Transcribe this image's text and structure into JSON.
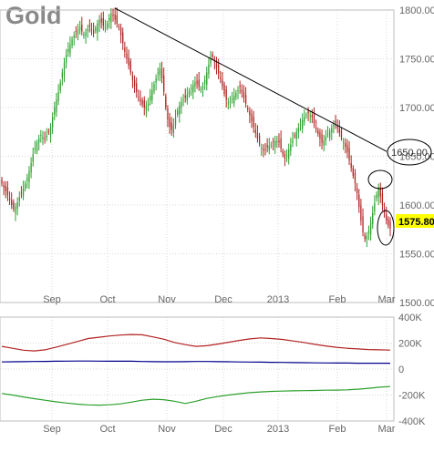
{
  "chart_data": [
    {
      "type": "candlestick",
      "title": "Gold",
      "yticks": [
        1500,
        1550,
        1600,
        1650,
        1700,
        1750,
        1800
      ],
      "ylim": [
        1500,
        1800
      ],
      "xticks": [
        "Sep",
        "Oct",
        "Nov",
        "Dec",
        "2013",
        "Feb",
        "Mar"
      ],
      "last_price": "1575.80",
      "annotation": "1650.00",
      "colors": {
        "up": "#2ca02c",
        "down": "#b22222",
        "trendline": "#000000",
        "last_price_bg": "#ffff00"
      },
      "trendline": [
        {
          "x": "Oct",
          "y": 1802
        },
        {
          "x": "Mar",
          "y": 1655
        }
      ],
      "closes": [
        1622,
        1618,
        1614,
        1610,
        1605,
        1600,
        1596,
        1598,
        1603,
        1608,
        1612,
        1617,
        1622,
        1628,
        1635,
        1643,
        1652,
        1658,
        1664,
        1668,
        1672,
        1670,
        1668,
        1671,
        1675,
        1680,
        1690,
        1700,
        1708,
        1716,
        1726,
        1736,
        1746,
        1754,
        1760,
        1765,
        1770,
        1774,
        1778,
        1780,
        1782,
        1778,
        1775,
        1777,
        1780,
        1783,
        1779,
        1776,
        1781,
        1786,
        1790,
        1787,
        1784,
        1782,
        1786,
        1792,
        1797,
        1794,
        1790,
        1786,
        1782,
        1774,
        1766,
        1757,
        1750,
        1743,
        1736,
        1728,
        1722,
        1716,
        1711,
        1706,
        1703,
        1700,
        1702,
        1704,
        1712,
        1718,
        1724,
        1730,
        1736,
        1740,
        1730,
        1716,
        1700,
        1688,
        1680,
        1677,
        1682,
        1690,
        1697,
        1702,
        1706,
        1708,
        1710,
        1713,
        1717,
        1720,
        1723,
        1726,
        1724,
        1721,
        1719,
        1722,
        1728,
        1736,
        1744,
        1750,
        1752,
        1747,
        1741,
        1735,
        1730,
        1722,
        1714,
        1708,
        1705,
        1706,
        1709,
        1712,
        1715,
        1718,
        1721,
        1716,
        1710,
        1704,
        1698,
        1692,
        1686,
        1680,
        1674,
        1668,
        1663,
        1659,
        1656,
        1657,
        1659,
        1661,
        1662,
        1664,
        1666,
        1665,
        1664,
        1658,
        1652,
        1648,
        1652,
        1657,
        1662,
        1667,
        1671,
        1675,
        1679,
        1683,
        1687,
        1690,
        1692,
        1694,
        1692,
        1690,
        1684,
        1678,
        1673,
        1668,
        1664,
        1666,
        1670,
        1673,
        1676,
        1679,
        1682,
        1684,
        1679,
        1674,
        1669,
        1665,
        1660,
        1654,
        1646,
        1638,
        1630,
        1622,
        1612,
        1598,
        1584,
        1572,
        1565,
        1568,
        1574,
        1582,
        1592,
        1602,
        1611,
        1618,
        1609,
        1600,
        1592,
        1584,
        1579,
        1576
      ]
    },
    {
      "type": "line",
      "yticks": [
        "400K",
        "200K",
        "0",
        "-200K",
        "-400K"
      ],
      "ylim": [
        -400000,
        400000
      ],
      "xticks": [
        "Sep",
        "Oct",
        "Nov",
        "Dec",
        "2013",
        "Feb",
        "Mar"
      ],
      "colors": {
        "red": "#b22222",
        "blue": "#00008b",
        "green": "#2ca02c"
      },
      "series": [
        {
          "values": [
            175000,
            160000,
            145000,
            140000,
            148000,
            168000,
            190000,
            212000,
            235000,
            245000,
            255000,
            262000,
            266000,
            264000,
            248000,
            230000,
            205000,
            188000,
            175000,
            180000,
            192000,
            206000,
            220000,
            232000,
            240000,
            235000,
            228000,
            216000,
            205000,
            190000,
            178000,
            168000,
            160000,
            155000,
            150000,
            148000,
            146000
          ]
        },
        {
          "values": [
            55000,
            56000,
            57000,
            58000,
            59000,
            60000,
            61000,
            62000,
            62000,
            61000,
            60000,
            60000,
            60000,
            58000,
            57000,
            56000,
            56000,
            57000,
            58000,
            58000,
            57000,
            56000,
            55000,
            54000,
            53000,
            52000,
            51000,
            50000,
            49000,
            48000,
            47000,
            46000,
            46000,
            45000,
            45000,
            45000,
            45000
          ]
        },
        {
          "values": [
            -188000,
            -200000,
            -215000,
            -228000,
            -240000,
            -252000,
            -262000,
            -270000,
            -276000,
            -278000,
            -275000,
            -268000,
            -255000,
            -240000,
            -232000,
            -236000,
            -248000,
            -265000,
            -248000,
            -226000,
            -212000,
            -200000,
            -190000,
            -182000,
            -176000,
            -172000,
            -170000,
            -168000,
            -166000,
            -165000,
            -163000,
            -162000,
            -160000,
            -155000,
            -148000,
            -140000,
            -135000
          ]
        }
      ]
    }
  ]
}
